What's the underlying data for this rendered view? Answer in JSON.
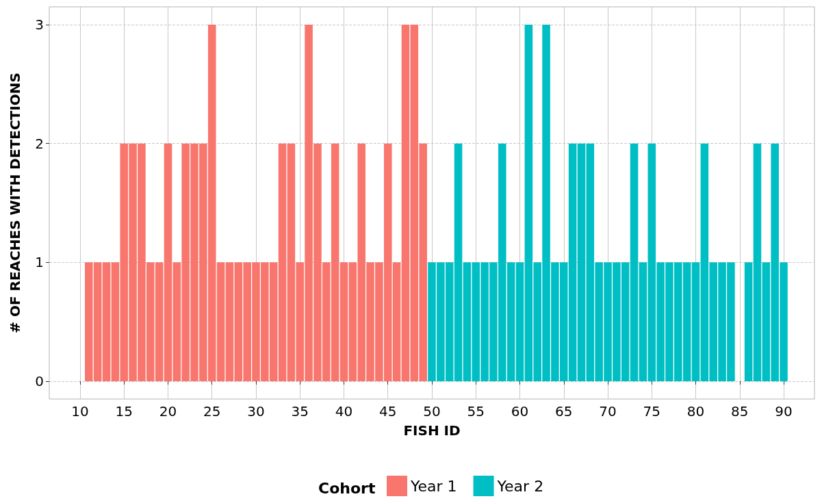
{
  "chart_data": {
    "type": "bar",
    "xlabel": "FISH ID",
    "ylabel": "# OF REACHES WITH DETECTIONS",
    "legend_title": "Cohort",
    "xlim": [
      6.5,
      93.5
    ],
    "xticks": [
      10,
      15,
      20,
      25,
      30,
      35,
      40,
      45,
      50,
      55,
      60,
      65,
      70,
      75,
      80,
      85,
      90
    ],
    "ylim": [
      -0.15,
      3.15
    ],
    "yticks": [
      0,
      1,
      2,
      3
    ],
    "grid": true,
    "legend": "bottom",
    "series": [
      {
        "name": "Year 1",
        "color": "#f8766d",
        "x": [
          11,
          12,
          13,
          14,
          15,
          16,
          17,
          18,
          19,
          20,
          21,
          22,
          23,
          24,
          25,
          26,
          27,
          28,
          29,
          30,
          31,
          32,
          33,
          34,
          35,
          36,
          37,
          38,
          39,
          40,
          41,
          42,
          43,
          44,
          45,
          46,
          47,
          48,
          49
        ],
        "values": [
          1,
          1,
          1,
          1,
          2,
          2,
          2,
          1,
          1,
          2,
          1,
          2,
          2,
          2,
          3,
          1,
          1,
          1,
          1,
          1,
          1,
          1,
          2,
          2,
          1,
          3,
          2,
          1,
          2,
          1,
          1,
          2,
          1,
          1,
          2,
          1,
          3,
          3,
          2
        ]
      },
      {
        "name": "Year 2",
        "color": "#00bfc4",
        "x": [
          50,
          51,
          52,
          53,
          54,
          55,
          56,
          57,
          58,
          59,
          60,
          61,
          62,
          63,
          64,
          65,
          66,
          67,
          68,
          69,
          70,
          71,
          72,
          73,
          74,
          75,
          76,
          77,
          78,
          79,
          80,
          81,
          82,
          83,
          84,
          85,
          86,
          87,
          88,
          89,
          90
        ],
        "values": [
          1,
          1,
          1,
          2,
          1,
          1,
          1,
          1,
          2,
          1,
          1,
          3,
          1,
          3,
          1,
          1,
          2,
          2,
          2,
          1,
          1,
          1,
          1,
          2,
          1,
          2,
          1,
          1,
          1,
          1,
          1,
          2,
          1,
          1,
          1,
          null,
          1,
          2,
          1,
          2,
          1
        ]
      }
    ]
  }
}
